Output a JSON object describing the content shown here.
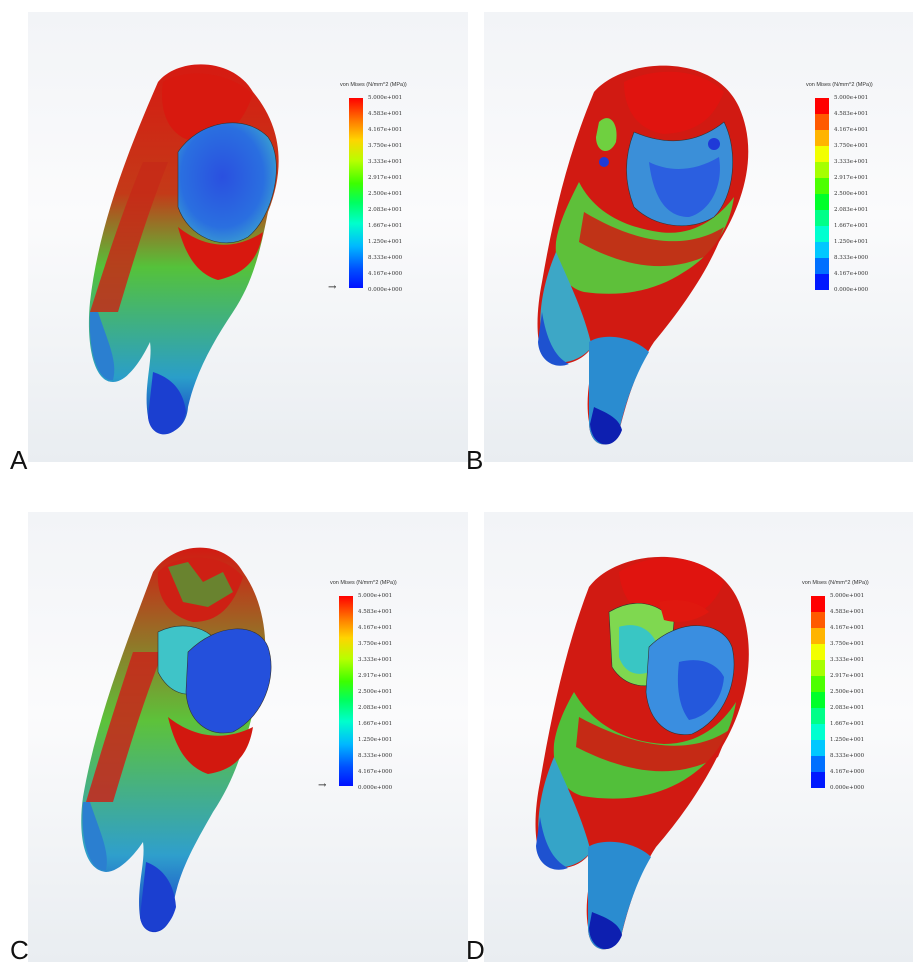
{
  "legend": {
    "title": "von Mises (N/mm^2 (MPa))",
    "title_b": "von Mises (N/mm^2 (MPa))",
    "ticks": [
      "5.000e+001",
      "4.583e+001",
      "4.167e+001",
      "3.750e+001",
      "3.333e+001",
      "2.917e+001",
      "2.500e+001",
      "2.083e+001",
      "1.667e+001",
      "1.250e+001",
      "8.333e+000",
      "4.167e+000",
      "0.000e+000"
    ],
    "band_colors": [
      "#ff0000",
      "#ff5a00",
      "#ffb400",
      "#f2ff00",
      "#a6ff00",
      "#4cff00",
      "#00ff2a",
      "#00ff88",
      "#00ffd0",
      "#00c8ff",
      "#0070ff",
      "#0018ff"
    ]
  },
  "panels": [
    {
      "letter": "A",
      "legend_style": "continuous"
    },
    {
      "letter": "B",
      "legend_style": "banded"
    },
    {
      "letter": "C",
      "legend_style": "continuous"
    },
    {
      "letter": "D",
      "legend_style": "banded"
    }
  ],
  "colors": {
    "high_stress": "#e01410",
    "mid_stress": "#3fbf3a",
    "low_stress": "#1a44d8"
  }
}
